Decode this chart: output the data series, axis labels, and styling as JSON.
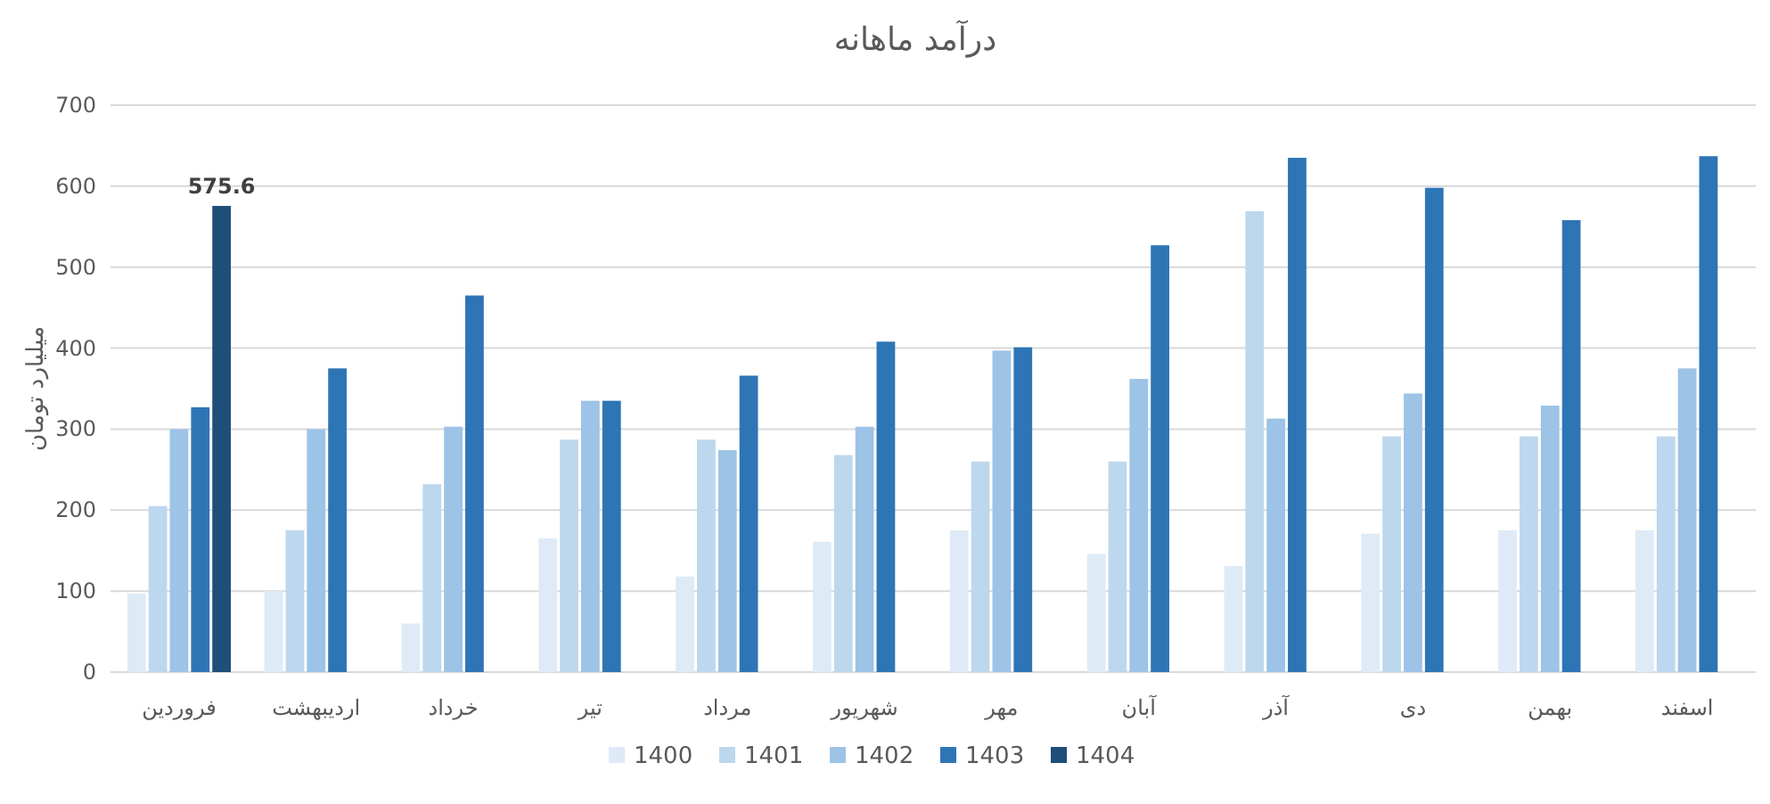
{
  "chart_data": {
    "type": "bar",
    "title": "درآمد ماهانه",
    "ylabel": "میلیارد تومان",
    "categories": [
      "فروردین",
      "اردیبهشت",
      "خرداد",
      "تیر",
      "مرداد",
      "شهریور",
      "مهر",
      "آبان",
      "آذر",
      "دی",
      "بهمن",
      "اسفند"
    ],
    "series": [
      {
        "name": "1400",
        "color": "#deebf7",
        "values": [
          97,
          100,
          60,
          165,
          118,
          161,
          175,
          146,
          131,
          171,
          175,
          175
        ]
      },
      {
        "name": "1401",
        "color": "#bdd7ee",
        "values": [
          205,
          175,
          232,
          287,
          287,
          268,
          260,
          260,
          569,
          291,
          291,
          291
        ]
      },
      {
        "name": "1402",
        "color": "#9dc3e6",
        "values": [
          300,
          300,
          303,
          335,
          274,
          303,
          397,
          362,
          313,
          344,
          329,
          375
        ]
      },
      {
        "name": "1403",
        "color": "#2e75b6",
        "values": [
          327,
          375,
          465,
          335,
          366,
          408,
          401,
          527,
          635,
          598,
          558,
          637
        ]
      },
      {
        "name": "1404",
        "color": "#1f4e79",
        "values": [
          575.6,
          null,
          null,
          null,
          null,
          null,
          null,
          null,
          null,
          null,
          null,
          null
        ],
        "value_labels": [
          "575.6",
          null,
          null,
          null,
          null,
          null,
          null,
          null,
          null,
          null,
          null,
          null
        ]
      }
    ],
    "ylim": [
      0,
      700
    ],
    "yticks": [
      0,
      100,
      200,
      300,
      400,
      500,
      600,
      700
    ],
    "grid": "y",
    "legend": "bottom"
  }
}
